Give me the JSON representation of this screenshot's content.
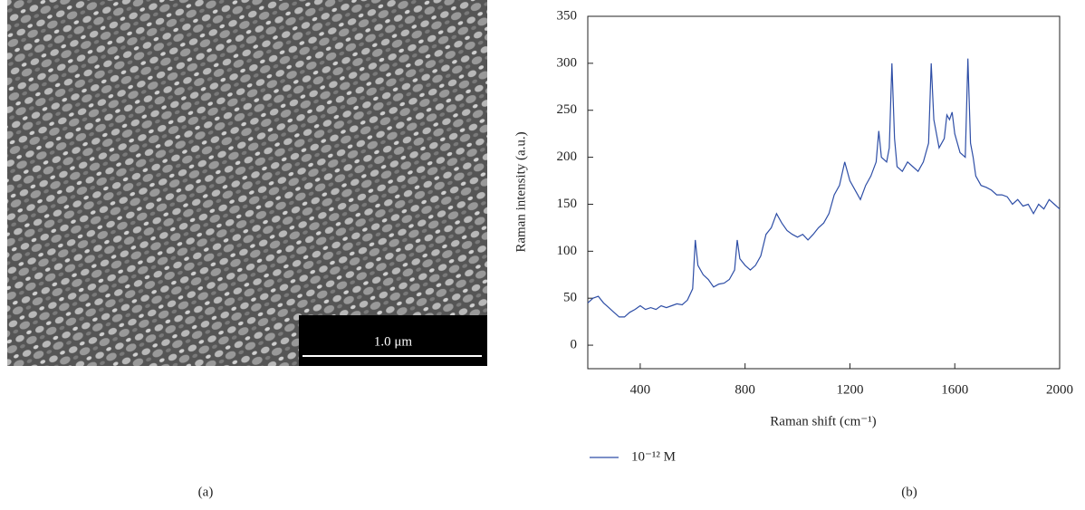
{
  "image_panel": {
    "scale_bar": "1.0 μm",
    "label": "(a)"
  },
  "chart_data": {
    "type": "line",
    "panel_label": "(b)",
    "xlabel": "Raman shift (cm⁻¹)",
    "ylabel": "Raman intensity (a.u.)",
    "xlim": [
      200,
      2000
    ],
    "ylim": [
      -25,
      350
    ],
    "xticks": [
      400,
      800,
      1200,
      1600,
      2000
    ],
    "yticks": [
      0,
      50,
      100,
      150,
      200,
      250,
      300,
      350
    ],
    "x": [
      200,
      220,
      240,
      260,
      280,
      300,
      320,
      340,
      360,
      380,
      400,
      420,
      440,
      460,
      480,
      500,
      520,
      540,
      560,
      580,
      600,
      610,
      620,
      640,
      660,
      680,
      700,
      720,
      740,
      760,
      770,
      780,
      800,
      820,
      840,
      860,
      880,
      900,
      920,
      940,
      960,
      980,
      1000,
      1020,
      1040,
      1060,
      1080,
      1100,
      1120,
      1140,
      1160,
      1180,
      1200,
      1220,
      1240,
      1260,
      1280,
      1300,
      1310,
      1320,
      1340,
      1350,
      1360,
      1370,
      1380,
      1400,
      1420,
      1440,
      1460,
      1480,
      1500,
      1510,
      1520,
      1540,
      1560,
      1570,
      1580,
      1590,
      1600,
      1620,
      1640,
      1650,
      1660,
      1670,
      1680,
      1700,
      1720,
      1740,
      1760,
      1780,
      1800,
      1820,
      1840,
      1860,
      1880,
      1900,
      1920,
      1940,
      1960,
      1980,
      2000
    ],
    "series": [
      {
        "name": "10⁻¹² M",
        "color": "#2e4ea6",
        "values": [
          45,
          50,
          52,
          45,
          40,
          35,
          30,
          30,
          35,
          38,
          42,
          38,
          40,
          38,
          42,
          40,
          42,
          44,
          43,
          48,
          60,
          112,
          85,
          75,
          70,
          62,
          65,
          66,
          70,
          80,
          112,
          92,
          85,
          80,
          85,
          95,
          118,
          125,
          140,
          130,
          122,
          118,
          115,
          118,
          112,
          118,
          125,
          130,
          140,
          160,
          170,
          195,
          175,
          165,
          155,
          170,
          180,
          195,
          228,
          200,
          195,
          210,
          300,
          220,
          190,
          185,
          195,
          190,
          185,
          195,
          215,
          300,
          240,
          210,
          220,
          245,
          240,
          248,
          225,
          205,
          200,
          305,
          215,
          200,
          180,
          170,
          168,
          165,
          160,
          160,
          158,
          150,
          155,
          148,
          150,
          140,
          150,
          145,
          155,
          150,
          145
        ]
      }
    ]
  }
}
